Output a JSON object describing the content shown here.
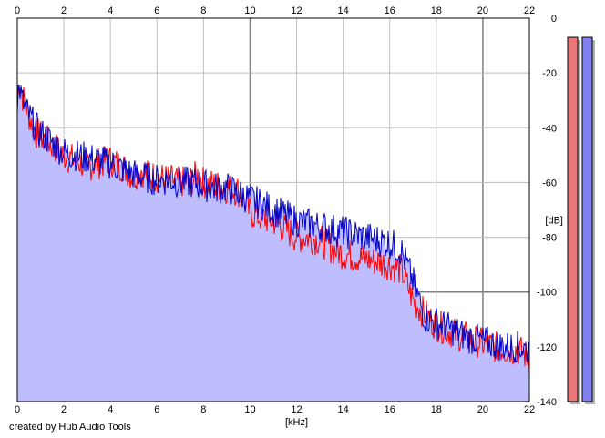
{
  "chart_data": {
    "type": "area",
    "title": "",
    "xlabel": "[kHz]",
    "ylabel": "[dB]",
    "xlim": [
      0,
      22
    ],
    "ylim": [
      -140,
      0
    ],
    "x_ticks": [
      0,
      2,
      4,
      6,
      8,
      10,
      12,
      14,
      16,
      18,
      20,
      22
    ],
    "y_ticks": [
      0,
      -20,
      -40,
      -60,
      -80,
      -100,
      -120,
      -140
    ],
    "grid": true,
    "x_unit_label": "[kHz]",
    "y_unit_label": "[dB]",
    "series": [
      {
        "color": "#ff0000",
        "x": [
          0,
          0.1,
          0.2,
          0.4,
          0.6,
          0.8,
          1.0,
          1.3,
          1.6,
          2.0,
          2.5,
          3.0,
          3.5,
          4.0,
          4.5,
          5.0,
          5.3,
          5.5,
          6.0,
          6.5,
          7.0,
          7.5,
          7.8,
          8.0,
          8.5,
          9.0,
          9.5,
          10.0,
          10.5,
          11.0,
          11.5,
          12.0,
          12.5,
          13.0,
          13.5,
          14.0,
          14.5,
          15.0,
          15.5,
          16.0,
          16.5,
          17.0,
          17.5,
          18.0,
          18.5,
          19.0,
          19.5,
          20.0,
          20.5,
          21.0,
          21.5,
          22.0
        ],
        "y": [
          -27,
          -22,
          -28,
          -33,
          -38,
          -42,
          -43,
          -45,
          -47,
          -50,
          -52,
          -54,
          -53,
          -52,
          -54,
          -58,
          -55,
          -57,
          -58,
          -59,
          -60,
          -59,
          -57,
          -60,
          -61,
          -62,
          -63,
          -71,
          -73,
          -74,
          -77,
          -80,
          -80,
          -81,
          -84,
          -86,
          -87,
          -88,
          -89,
          -90,
          -92,
          -103,
          -108,
          -112,
          -114,
          -116,
          -117,
          -119,
          -120,
          -121,
          -121,
          -124
        ]
      },
      {
        "color": "#0000c8",
        "x": [
          0,
          0.1,
          0.2,
          0.4,
          0.6,
          0.8,
          1.0,
          1.3,
          1.6,
          2.0,
          2.5,
          3.0,
          3.5,
          4.0,
          4.5,
          5.0,
          5.5,
          6.0,
          6.5,
          7.0,
          7.5,
          8.0,
          8.5,
          9.0,
          9.5,
          10.0,
          10.5,
          11.0,
          11.5,
          12.0,
          12.5,
          13.0,
          13.5,
          14.0,
          14.5,
          15.0,
          15.5,
          16.0,
          16.5,
          17.0,
          17.5,
          18.0,
          18.5,
          19.0,
          19.5,
          20.0,
          20.5,
          21.0,
          21.5,
          22.0
        ],
        "y": [
          -30,
          -25,
          -30,
          -34,
          -37,
          -40,
          -42,
          -44,
          -46,
          -49,
          -50,
          -51,
          -52,
          -53,
          -55,
          -57,
          -58,
          -59,
          -59,
          -60,
          -60,
          -61,
          -62,
          -62,
          -64,
          -66,
          -68,
          -70,
          -72,
          -74,
          -75,
          -76,
          -77,
          -78,
          -79,
          -80,
          -81,
          -82,
          -85,
          -96,
          -109,
          -111,
          -113,
          -115,
          -117,
          -118,
          -119,
          -120,
          -120,
          -121
        ]
      }
    ],
    "level_meters": [
      {
        "color": "#e87878",
        "level_db": -7
      },
      {
        "color": "#8080ee",
        "level_db": -7
      }
    ]
  },
  "credit": "created by Hub Audio Tools",
  "colors": {
    "fill": "#bebeff",
    "grid": "#c0c0c0",
    "grid_major": "#808080",
    "axis": "#000000"
  }
}
